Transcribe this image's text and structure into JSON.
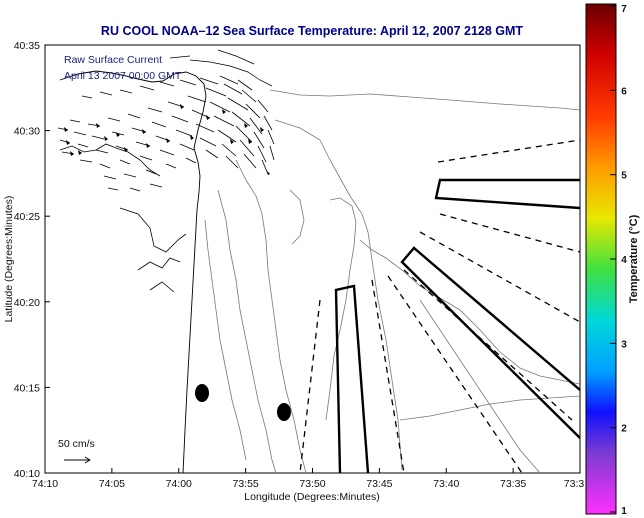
{
  "chart_data": {
    "type": "map",
    "title": "RU COOL  NOAA–12  Sea Surface Temperature:  April 12, 2007 2128 GMT",
    "xlabel": "Longitude (Degrees:Minutes)",
    "ylabel": "Latitude (Degrees:Minutes)",
    "x_ticks": [
      "74:10",
      "74:05",
      "74:00",
      "73:55",
      "73:50",
      "73:45",
      "73:40",
      "73:35",
      "73:3"
    ],
    "y_ticks": [
      "40:35",
      "40:30",
      "40:25",
      "40:20",
      "40:15",
      "40:10"
    ],
    "annotations": {
      "current_label": "Raw Surface Current",
      "current_time": "April 13 2007 00:00 GMT",
      "scale_label": "50 cm/s"
    },
    "colorbar": {
      "label": "Temperature (°C)",
      "ticks": [
        "7",
        "6",
        "5",
        "4",
        "3",
        "2",
        "1"
      ],
      "range": [
        1,
        7
      ],
      "colors": [
        "#8b0000",
        "#ff0000",
        "#ff8c00",
        "#ffff00",
        "#00ff00",
        "#00ffff",
        "#0000ff",
        "#8a2be2",
        "#ff00ff"
      ]
    }
  }
}
